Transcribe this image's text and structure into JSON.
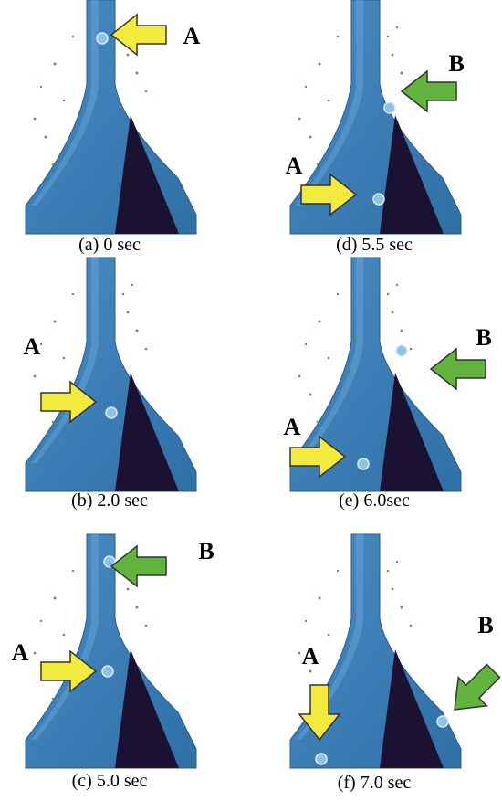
{
  "panels": [
    {
      "caption": "(a) 0 sec",
      "labels": [
        "A"
      ]
    },
    {
      "caption": "(b) 2.0 sec",
      "labels": [
        "A"
      ]
    },
    {
      "caption": "(c) 5.0 sec",
      "labels": [
        "B",
        "A"
      ]
    },
    {
      "caption": "(d) 5.5 sec",
      "labels": [
        "B",
        "A"
      ]
    },
    {
      "caption": "(e) 6.0sec",
      "labels": [
        "B",
        "A"
      ]
    },
    {
      "caption": "(f) 7.0 sec",
      "labels": [
        "A",
        "B"
      ]
    }
  ]
}
